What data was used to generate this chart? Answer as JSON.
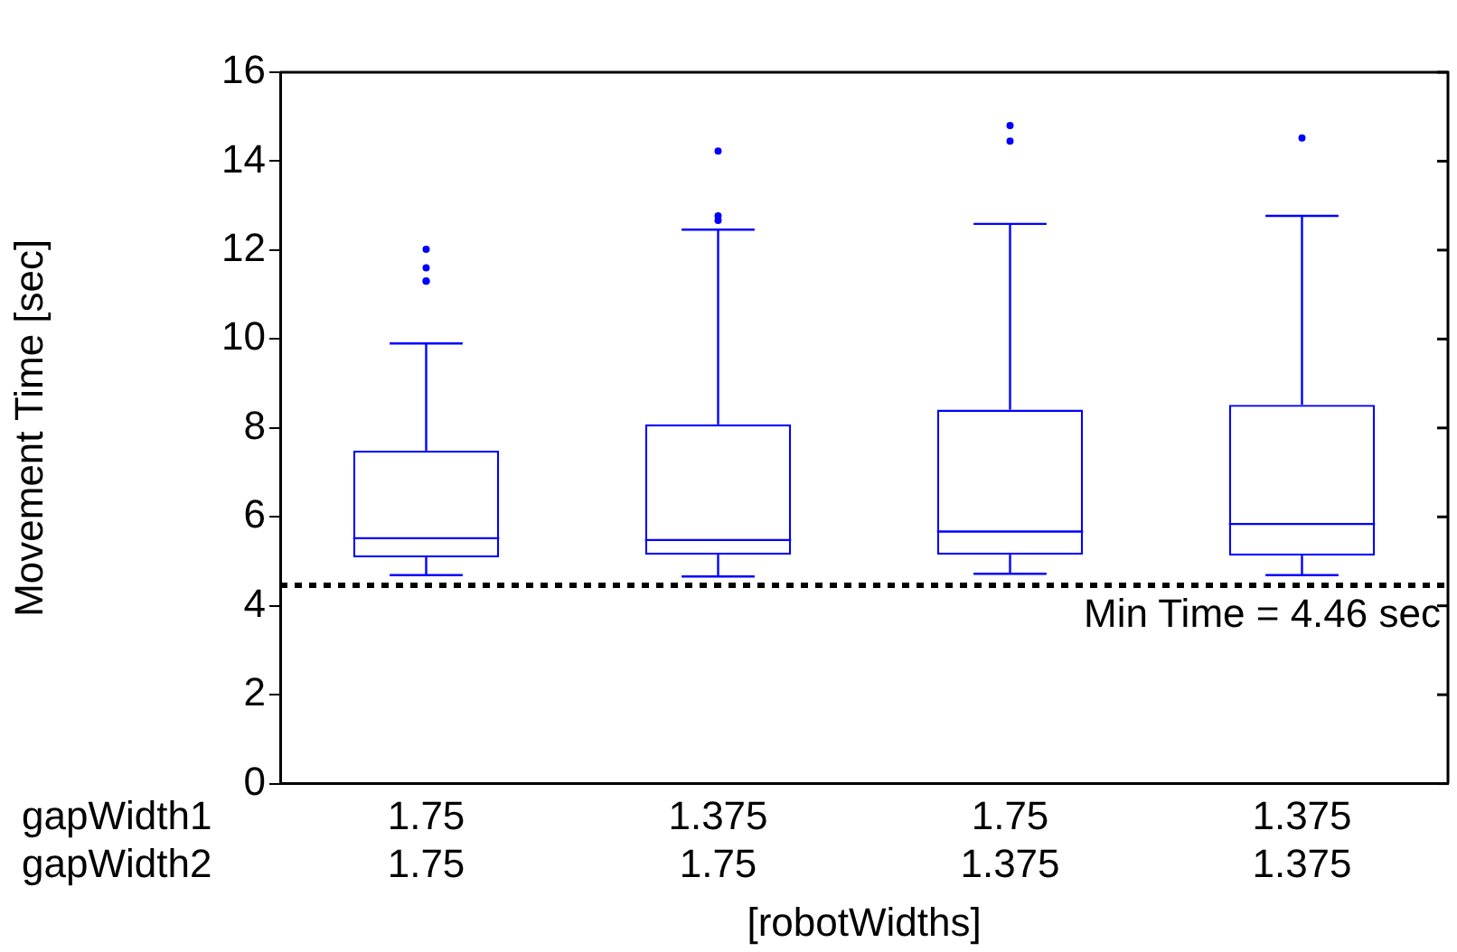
{
  "chart_data": {
    "type": "box",
    "xlabel": "[robotWidths]",
    "ylabel": "Movement Time [sec]",
    "categories": [
      "1.75\n1.75",
      "1.375\n1.75",
      "1.75\n1.375",
      "1.375\n1.375"
    ],
    "ylim": [
      0,
      16
    ],
    "yticks": [
      0,
      2,
      4,
      6,
      8,
      10,
      12,
      14,
      16
    ],
    "grid": false,
    "series": [
      {
        "color": "#0000ff",
        "boxes": [
          {
            "low": 4.69,
            "q1": 5.09,
            "median": 5.52,
            "q3": 7.49,
            "high": 9.9,
            "outliers": [
              12.02,
              11.6,
              11.3,
              11.3
            ]
          },
          {
            "low": 4.66,
            "q1": 5.15,
            "median": 5.48,
            "q3": 8.08,
            "high": 12.46,
            "outliers": [
              14.23,
              12.77,
              12.67
            ]
          },
          {
            "low": 4.72,
            "q1": 5.15,
            "median": 5.67,
            "q3": 8.41,
            "high": 12.59,
            "outliers": [
              14.8,
              14.45
            ]
          },
          {
            "low": 4.69,
            "q1": 5.13,
            "median": 5.84,
            "q3": 8.52,
            "high": 12.77,
            "outliers": [
              14.52
            ]
          }
        ]
      }
    ],
    "ref_lines": [
      {
        "axis": "y",
        "value": 4.46,
        "label": "Min Time = 4.46 sec",
        "color": "#000000",
        "line_style": "dotted"
      }
    ],
    "annotations": [
      "gapWidth1",
      "gapWidth2"
    ]
  }
}
